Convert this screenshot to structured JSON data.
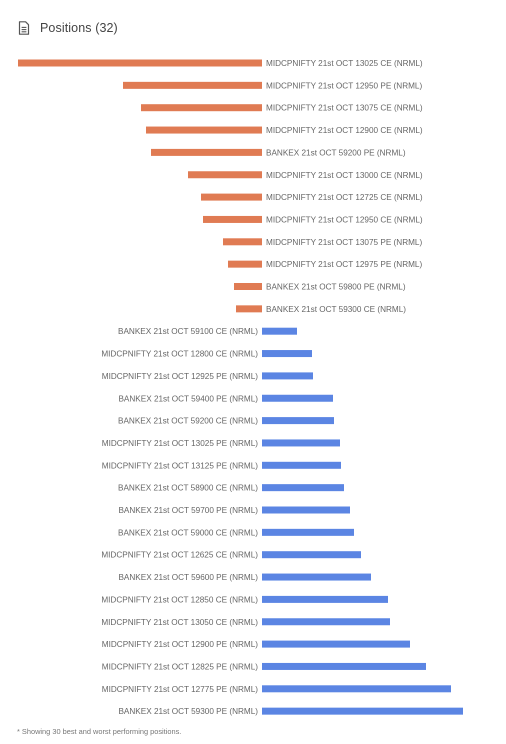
{
  "header": {
    "title": "Positions (32)",
    "icon": "document-icon"
  },
  "footnote": "* Showing 30 best and worst performing positions.",
  "colors": {
    "loss": "#e07b53",
    "profit": "#5b85e3",
    "label": "#666666"
  },
  "chart_data": {
    "type": "bar",
    "orientation": "horizontal",
    "title": "",
    "xlabel": "",
    "ylabel": "",
    "unit": "relative P&L (no axis shown)",
    "xlim": [
      -244,
      201
    ],
    "grid": false,
    "legend": "none",
    "categories": [
      "MIDCPNIFTY 21st OCT 13025 CE (NRML)",
      "MIDCPNIFTY 21st OCT 12950 PE (NRML)",
      "MIDCPNIFTY 21st OCT 13075 CE (NRML)",
      "MIDCPNIFTY 21st OCT 12900 CE (NRML)",
      "BANKEX 21st OCT 59200 PE (NRML)",
      "MIDCPNIFTY 21st OCT 13000 CE (NRML)",
      "MIDCPNIFTY 21st OCT 12725 CE (NRML)",
      "MIDCPNIFTY 21st OCT 12950 CE (NRML)",
      "MIDCPNIFTY 21st OCT 13075 PE (NRML)",
      "MIDCPNIFTY 21st OCT 12975 PE (NRML)",
      "BANKEX 21st OCT 59800 PE (NRML)",
      "BANKEX 21st OCT 59300 CE (NRML)",
      "BANKEX 21st OCT 59100 CE (NRML)",
      "MIDCPNIFTY 21st OCT 12800 CE (NRML)",
      "MIDCPNIFTY 21st OCT 12925 PE (NRML)",
      "BANKEX 21st OCT 59400 PE (NRML)",
      "BANKEX 21st OCT 59200 CE (NRML)",
      "MIDCPNIFTY 21st OCT 13025 PE (NRML)",
      "MIDCPNIFTY 21st OCT 13125 PE (NRML)",
      "BANKEX 21st OCT 58900 CE (NRML)",
      "BANKEX 21st OCT 59700 PE (NRML)",
      "BANKEX 21st OCT 59000 CE (NRML)",
      "MIDCPNIFTY 21st OCT 12625 CE (NRML)",
      "BANKEX 21st OCT 59600 PE (NRML)",
      "MIDCPNIFTY 21st OCT 12850 CE (NRML)",
      "MIDCPNIFTY 21st OCT 13050 CE (NRML)",
      "MIDCPNIFTY 21st OCT 12900 PE (NRML)",
      "MIDCPNIFTY 21st OCT 12825 PE (NRML)",
      "MIDCPNIFTY 21st OCT 12775 PE (NRML)",
      "BANKEX 21st OCT 59300 PE (NRML)"
    ],
    "values": [
      -244,
      -139,
      -121,
      -116,
      -111,
      -74,
      -61,
      -59,
      -39,
      -34,
      -28,
      -26,
      35,
      50,
      51,
      71,
      72,
      78,
      79,
      82,
      88,
      92,
      99,
      109,
      126,
      128,
      148,
      164,
      189,
      201
    ]
  }
}
